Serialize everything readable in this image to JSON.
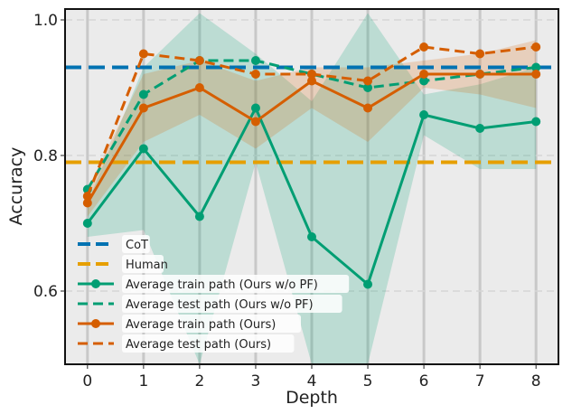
{
  "chart_data": {
    "type": "line",
    "title": "",
    "xlabel": "Depth",
    "ylabel": "Accuracy",
    "x": [
      0,
      1,
      2,
      3,
      4,
      5,
      6,
      7,
      8
    ],
    "xticks": [
      "0",
      "1",
      "2",
      "3",
      "4",
      "5",
      "6",
      "7",
      "8"
    ],
    "yticks": [
      {
        "v": 0.6,
        "label": "0.6"
      },
      {
        "v": 0.8,
        "label": "0.8"
      },
      {
        "v": 1.0,
        "label": "1.0"
      }
    ],
    "xlim": [
      -0.4,
      8.4
    ],
    "ylim": [
      0.492,
      1.016
    ],
    "grid": true,
    "legend_position": "bottom-left",
    "reference_lines": [
      {
        "name": "CoT",
        "value": 0.93,
        "color": "#0072b2"
      },
      {
        "name": "Human",
        "value": 0.79,
        "color": "#e69f00"
      }
    ],
    "series": [
      {
        "name": "Average train path (Ours w/o PF)",
        "color": "#009e73",
        "style": "solid",
        "markers": true,
        "values": [
          0.7,
          0.81,
          0.71,
          0.87,
          0.68,
          0.61,
          0.86,
          0.84,
          0.85
        ],
        "band_low": [
          0.68,
          0.69,
          0.41,
          0.79,
          0.48,
          0.21,
          0.83,
          0.78,
          0.78
        ],
        "band_high": [
          0.73,
          0.93,
          1.01,
          0.95,
          0.88,
          1.01,
          0.89,
          0.905,
          0.93
        ]
      },
      {
        "name": "Average test path (Ours w/o PF)",
        "color": "#009e73",
        "style": "dashed",
        "markers": true,
        "values": [
          0.75,
          0.89,
          0.94,
          0.94,
          0.92,
          0.9,
          0.91,
          0.92,
          0.93
        ]
      },
      {
        "name": "Average train path (Ours)",
        "color": "#d55e00",
        "style": "solid",
        "markers": true,
        "values": [
          0.73,
          0.87,
          0.9,
          0.85,
          0.91,
          0.87,
          0.92,
          0.92,
          0.92
        ],
        "band_low": [
          0.71,
          0.82,
          0.86,
          0.81,
          0.87,
          0.82,
          0.9,
          0.89,
          0.87
        ],
        "band_high": [
          0.75,
          0.92,
          0.94,
          0.91,
          0.93,
          0.93,
          0.94,
          0.95,
          0.97
        ]
      },
      {
        "name": "Average test path (Ours)",
        "color": "#d55e00",
        "style": "dashed",
        "markers": true,
        "values": [
          0.74,
          0.95,
          0.94,
          0.92,
          0.92,
          0.91,
          0.96,
          0.95,
          0.96
        ]
      }
    ]
  }
}
